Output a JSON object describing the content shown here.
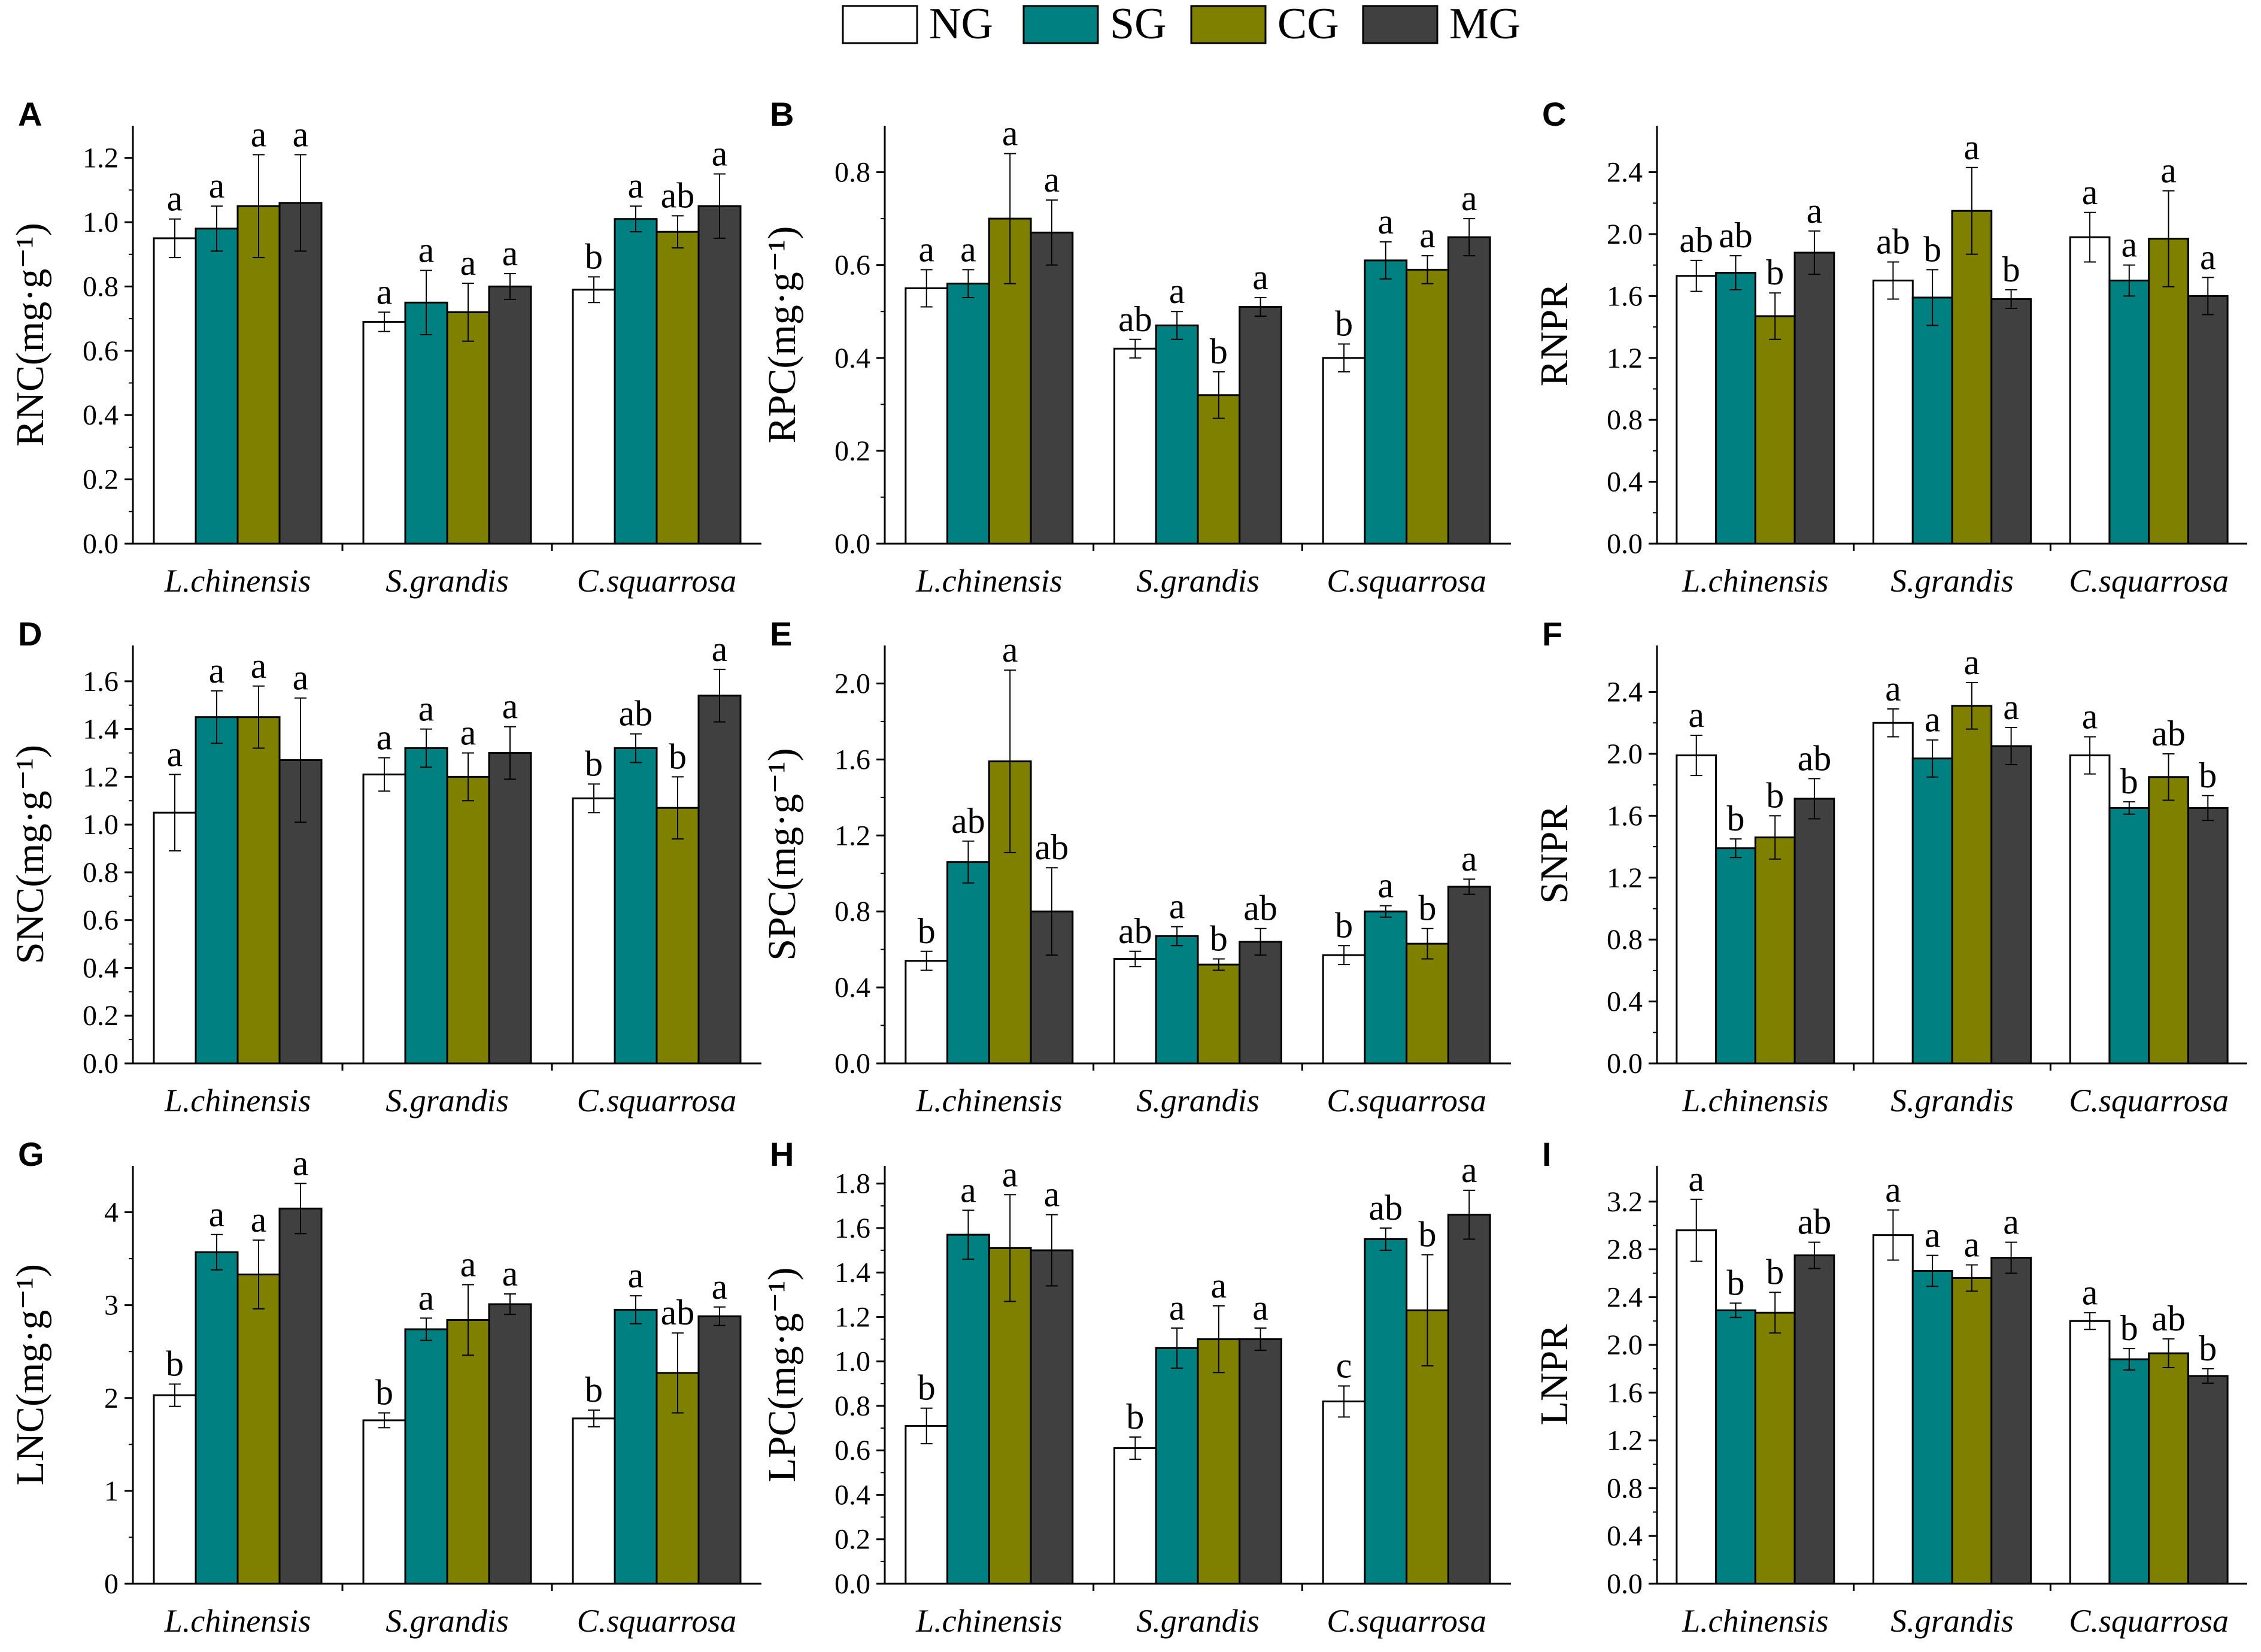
{
  "legend": [
    {
      "label": "NG",
      "color": "#ffffff"
    },
    {
      "label": "SG",
      "color": "#008080"
    },
    {
      "label": "CG",
      "color": "#808000"
    },
    {
      "label": "MG",
      "color": "#404040"
    }
  ],
  "chart_data": [
    {
      "type": "bar",
      "panel": "A",
      "ylabel": "RNC(mg·g⁻¹)",
      "ylim": [
        0,
        1.3
      ],
      "yticks": [
        "0.0",
        "0.2",
        "0.4",
        "0.6",
        "0.8",
        "1.0",
        "1.2"
      ],
      "categories": [
        "L.chinensis",
        "S.grandis",
        "C.squarrosa"
      ],
      "series": [
        {
          "name": "NG",
          "values": [
            0.95,
            0.69,
            0.79
          ],
          "errors": [
            0.06,
            0.03,
            0.04
          ],
          "letters": [
            "a",
            "a",
            "b"
          ]
        },
        {
          "name": "SG",
          "values": [
            0.98,
            0.75,
            1.01
          ],
          "errors": [
            0.07,
            0.1,
            0.04
          ],
          "letters": [
            "a",
            "a",
            "a"
          ]
        },
        {
          "name": "CG",
          "values": [
            1.05,
            0.72,
            0.97
          ],
          "errors": [
            0.16,
            0.09,
            0.05
          ],
          "letters": [
            "a",
            "a",
            "ab"
          ]
        },
        {
          "name": "MG",
          "values": [
            1.06,
            0.8,
            1.05
          ],
          "errors": [
            0.15,
            0.04,
            0.1
          ],
          "letters": [
            "a",
            "a",
            "a"
          ]
        }
      ]
    },
    {
      "type": "bar",
      "panel": "B",
      "ylabel": "RPC(mg·g⁻¹)",
      "ylim": [
        0,
        0.9
      ],
      "yticks": [
        "0.0",
        "0.2",
        "0.4",
        "0.6",
        "0.8"
      ],
      "categories": [
        "L.chinensis",
        "S.grandis",
        "C.squarrosa"
      ],
      "series": [
        {
          "name": "NG",
          "values": [
            0.55,
            0.42,
            0.4
          ],
          "errors": [
            0.04,
            0.02,
            0.03
          ],
          "letters": [
            "a",
            "ab",
            "b"
          ]
        },
        {
          "name": "SG",
          "values": [
            0.56,
            0.47,
            0.61
          ],
          "errors": [
            0.03,
            0.03,
            0.04
          ],
          "letters": [
            "a",
            "a",
            "a"
          ]
        },
        {
          "name": "CG",
          "values": [
            0.7,
            0.32,
            0.59
          ],
          "errors": [
            0.14,
            0.05,
            0.03
          ],
          "letters": [
            "a",
            "b",
            "a"
          ]
        },
        {
          "name": "MG",
          "values": [
            0.67,
            0.51,
            0.66
          ],
          "errors": [
            0.07,
            0.02,
            0.04
          ],
          "letters": [
            "a",
            "a",
            "a"
          ]
        }
      ]
    },
    {
      "type": "bar",
      "panel": "C",
      "ylabel": "RNPR",
      "ylim": [
        0,
        2.7
      ],
      "yticks": [
        "0.0",
        "0.4",
        "0.8",
        "1.2",
        "1.6",
        "2.0",
        "2.4"
      ],
      "categories": [
        "L.chinensis",
        "S.grandis",
        "C.squarrosa"
      ],
      "series": [
        {
          "name": "NG",
          "values": [
            1.73,
            1.7,
            1.98
          ],
          "errors": [
            0.1,
            0.12,
            0.16
          ],
          "letters": [
            "ab",
            "ab",
            "a"
          ]
        },
        {
          "name": "SG",
          "values": [
            1.75,
            1.59,
            1.7
          ],
          "errors": [
            0.11,
            0.18,
            0.1
          ],
          "letters": [
            "ab",
            "b",
            "a"
          ]
        },
        {
          "name": "CG",
          "values": [
            1.47,
            2.15,
            1.97
          ],
          "errors": [
            0.15,
            0.28,
            0.31
          ],
          "letters": [
            "b",
            "a",
            "a"
          ]
        },
        {
          "name": "MG",
          "values": [
            1.88,
            1.58,
            1.6
          ],
          "errors": [
            0.14,
            0.06,
            0.12
          ],
          "letters": [
            "a",
            "b",
            "a"
          ]
        }
      ]
    },
    {
      "type": "bar",
      "panel": "D",
      "ylabel": "SNC(mg·g⁻¹)",
      "ylim": [
        0,
        1.75
      ],
      "yticks": [
        "0.0",
        "0.2",
        "0.4",
        "0.6",
        "0.8",
        "1.0",
        "1.2",
        "1.4",
        "1.6"
      ],
      "categories": [
        "L.chinensis",
        "S.grandis",
        "C.squarrosa"
      ],
      "series": [
        {
          "name": "NG",
          "values": [
            1.05,
            1.21,
            1.11
          ],
          "errors": [
            0.16,
            0.07,
            0.06
          ],
          "letters": [
            "a",
            "a",
            "b"
          ]
        },
        {
          "name": "SG",
          "values": [
            1.45,
            1.32,
            1.32
          ],
          "errors": [
            0.11,
            0.08,
            0.06
          ],
          "letters": [
            "a",
            "a",
            "ab"
          ]
        },
        {
          "name": "CG",
          "values": [
            1.45,
            1.2,
            1.07
          ],
          "errors": [
            0.13,
            0.1,
            0.13
          ],
          "letters": [
            "a",
            "a",
            "b"
          ]
        },
        {
          "name": "MG",
          "values": [
            1.27,
            1.3,
            1.54
          ],
          "errors": [
            0.26,
            0.11,
            0.11
          ],
          "letters": [
            "a",
            "a",
            "a"
          ]
        }
      ]
    },
    {
      "type": "bar",
      "panel": "E",
      "ylabel": "SPC(mg·g⁻¹)",
      "ylim": [
        0,
        2.2
      ],
      "yticks": [
        "0.0",
        "0.4",
        "0.8",
        "1.2",
        "1.6",
        "2.0"
      ],
      "categories": [
        "L.chinensis",
        "S.grandis",
        "C.squarrosa"
      ],
      "series": [
        {
          "name": "NG",
          "values": [
            0.54,
            0.55,
            0.57
          ],
          "errors": [
            0.05,
            0.04,
            0.05
          ],
          "letters": [
            "b",
            "ab",
            "b"
          ]
        },
        {
          "name": "SG",
          "values": [
            1.06,
            0.67,
            0.8
          ],
          "errors": [
            0.11,
            0.05,
            0.03
          ],
          "letters": [
            "ab",
            "a",
            "a"
          ]
        },
        {
          "name": "CG",
          "values": [
            1.59,
            0.52,
            0.63
          ],
          "errors": [
            0.48,
            0.03,
            0.08
          ],
          "letters": [
            "a",
            "b",
            "b"
          ]
        },
        {
          "name": "MG",
          "values": [
            0.8,
            0.64,
            0.93
          ],
          "errors": [
            0.23,
            0.07,
            0.04
          ],
          "letters": [
            "ab",
            "ab",
            "a"
          ]
        }
      ]
    },
    {
      "type": "bar",
      "panel": "F",
      "ylabel": "SNPR",
      "ylim": [
        0,
        2.7
      ],
      "yticks": [
        "0.0",
        "0.4",
        "0.8",
        "1.2",
        "1.6",
        "2.0",
        "2.4"
      ],
      "categories": [
        "L.chinensis",
        "S.grandis",
        "C.squarrosa"
      ],
      "series": [
        {
          "name": "NG",
          "values": [
            1.99,
            2.2,
            1.99
          ],
          "errors": [
            0.13,
            0.09,
            0.12
          ],
          "letters": [
            "a",
            "a",
            "a"
          ]
        },
        {
          "name": "SG",
          "values": [
            1.39,
            1.97,
            1.65
          ],
          "errors": [
            0.06,
            0.12,
            0.04
          ],
          "letters": [
            "b",
            "a",
            "b"
          ]
        },
        {
          "name": "CG",
          "values": [
            1.46,
            2.31,
            1.85
          ],
          "errors": [
            0.14,
            0.15,
            0.15
          ],
          "letters": [
            "b",
            "a",
            "ab"
          ]
        },
        {
          "name": "MG",
          "values": [
            1.71,
            2.05,
            1.65
          ],
          "errors": [
            0.13,
            0.12,
            0.08
          ],
          "letters": [
            "ab",
            "a",
            "b"
          ]
        }
      ]
    },
    {
      "type": "bar",
      "panel": "G",
      "ylabel": "LNC(mg·g⁻¹)",
      "ylim": [
        0,
        4.5
      ],
      "yticks": [
        "0",
        "1",
        "2",
        "3",
        "4"
      ],
      "categories": [
        "L.chinensis",
        "S.grandis",
        "C.squarrosa"
      ],
      "series": [
        {
          "name": "NG",
          "values": [
            2.03,
            1.76,
            1.78
          ],
          "errors": [
            0.12,
            0.08,
            0.09
          ],
          "letters": [
            "b",
            "b",
            "b"
          ]
        },
        {
          "name": "SG",
          "values": [
            3.57,
            2.74,
            2.95
          ],
          "errors": [
            0.19,
            0.12,
            0.15
          ],
          "letters": [
            "a",
            "a",
            "a"
          ]
        },
        {
          "name": "CG",
          "values": [
            3.33,
            2.84,
            2.27
          ],
          "errors": [
            0.37,
            0.38,
            0.43
          ],
          "letters": [
            "a",
            "a",
            "ab"
          ]
        },
        {
          "name": "MG",
          "values": [
            4.04,
            3.01,
            2.88
          ],
          "errors": [
            0.27,
            0.11,
            0.1
          ],
          "letters": [
            "a",
            "a",
            "a"
          ]
        }
      ]
    },
    {
      "type": "bar",
      "panel": "H",
      "ylabel": "LPC(mg·g⁻¹)",
      "ylim": [
        0,
        1.88
      ],
      "yticks": [
        "0.0",
        "0.2",
        "0.4",
        "0.6",
        "0.8",
        "1.0",
        "1.2",
        "1.4",
        "1.6",
        "1.8"
      ],
      "categories": [
        "L.chinensis",
        "S.grandis",
        "C.squarrosa"
      ],
      "series": [
        {
          "name": "NG",
          "values": [
            0.71,
            0.61,
            0.82
          ],
          "errors": [
            0.08,
            0.05,
            0.07
          ],
          "letters": [
            "b",
            "b",
            "c"
          ]
        },
        {
          "name": "SG",
          "values": [
            1.57,
            1.06,
            1.55
          ],
          "errors": [
            0.11,
            0.09,
            0.05
          ],
          "letters": [
            "a",
            "a",
            "ab"
          ]
        },
        {
          "name": "CG",
          "values": [
            1.51,
            1.1,
            1.23
          ],
          "errors": [
            0.24,
            0.15,
            0.25
          ],
          "letters": [
            "a",
            "a",
            "b"
          ]
        },
        {
          "name": "MG",
          "values": [
            1.5,
            1.1,
            1.66
          ],
          "errors": [
            0.16,
            0.05,
            0.11
          ],
          "letters": [
            "a",
            "a",
            "a"
          ]
        }
      ]
    },
    {
      "type": "bar",
      "panel": "I",
      "ylabel": "LNPR",
      "ylim": [
        0,
        3.5
      ],
      "yticks": [
        "0.0",
        "0.4",
        "0.8",
        "1.2",
        "1.6",
        "2.0",
        "2.4",
        "2.8",
        "3.2"
      ],
      "categories": [
        "L.chinensis",
        "S.grandis",
        "C.squarrosa"
      ],
      "series": [
        {
          "name": "NG",
          "values": [
            2.96,
            2.92,
            2.2
          ],
          "errors": [
            0.26,
            0.21,
            0.07
          ],
          "letters": [
            "a",
            "a",
            "a"
          ]
        },
        {
          "name": "SG",
          "values": [
            2.29,
            2.62,
            1.88
          ],
          "errors": [
            0.06,
            0.13,
            0.09
          ],
          "letters": [
            "b",
            "a",
            "b"
          ]
        },
        {
          "name": "CG",
          "values": [
            2.27,
            2.56,
            1.93
          ],
          "errors": [
            0.17,
            0.11,
            0.12
          ],
          "letters": [
            "b",
            "a",
            "ab"
          ]
        },
        {
          "name": "MG",
          "values": [
            2.75,
            2.73,
            1.74
          ],
          "errors": [
            0.11,
            0.13,
            0.06
          ],
          "letters": [
            "ab",
            "a",
            "b"
          ]
        }
      ]
    }
  ]
}
